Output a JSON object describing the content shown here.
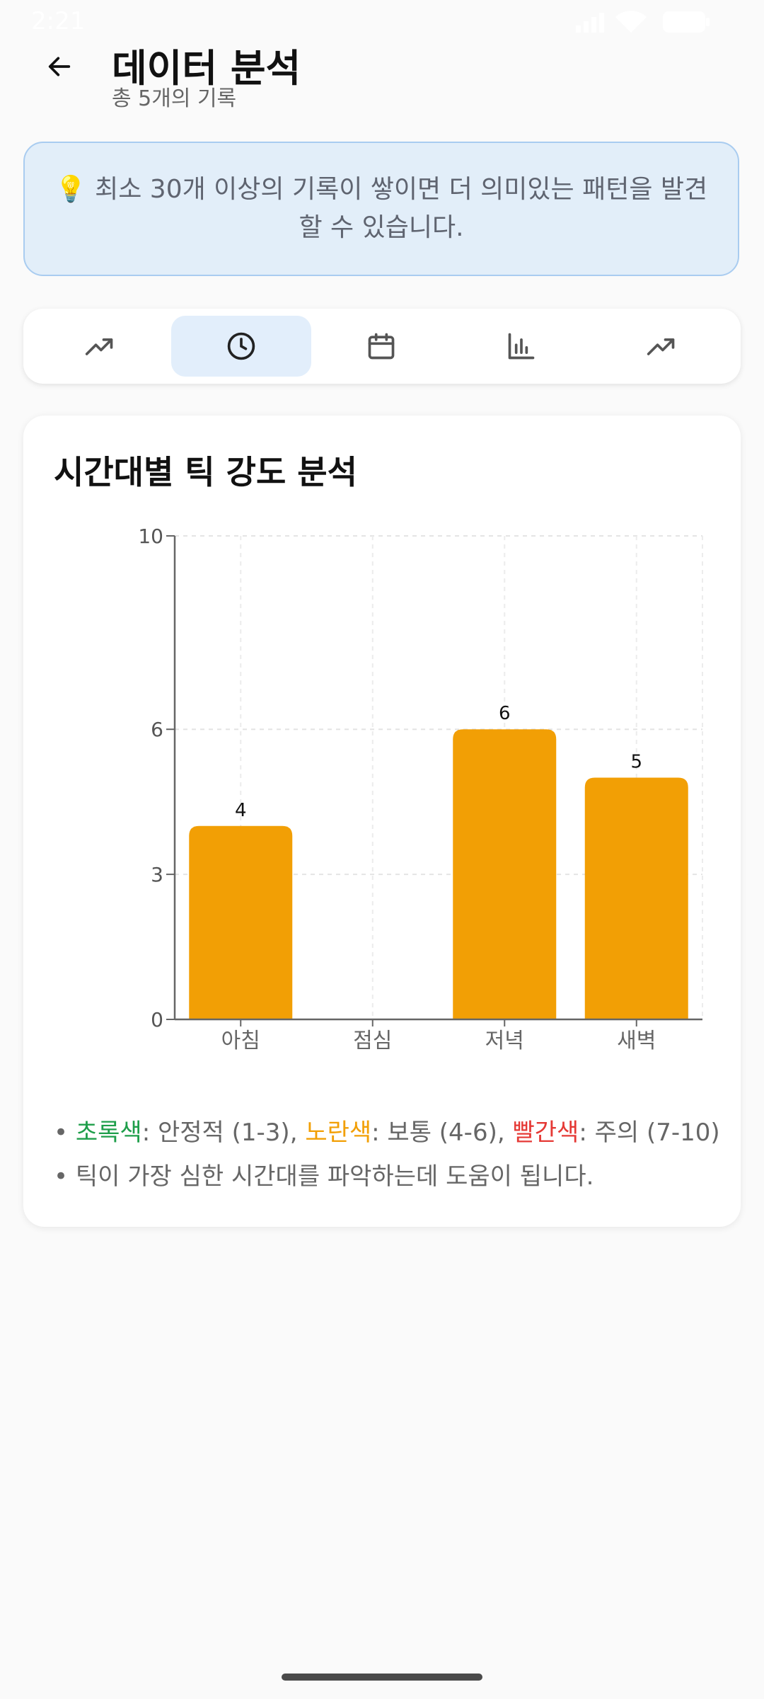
{
  "status_bar": {
    "time": "2:21"
  },
  "header": {
    "title": "데이터 분석",
    "subtitle": "총 5개의 기록"
  },
  "notice": {
    "text": "💡 최소 30개 이상의 기록이 쌓이면 더 의미있는 패턴을 발견할 수 있습니다."
  },
  "tabs": [
    {
      "icon": "trending-up-icon",
      "active": false
    },
    {
      "icon": "clock-icon",
      "active": true
    },
    {
      "icon": "calendar-icon",
      "active": false
    },
    {
      "icon": "bar-chart-icon",
      "active": false
    },
    {
      "icon": "trending-up-icon",
      "active": false
    }
  ],
  "chart_card": {
    "title": "시간대별 틱 강도 분석",
    "legend": {
      "bullet": "•",
      "green_label": "초록색",
      "green_desc": ": 안정적 (1-3), ",
      "yellow_label": "노란색",
      "yellow_desc": ": 보통 (4-6), ",
      "red_label": "빨간색",
      "red_desc": ": 주의 (7-10)",
      "note": "틱이 가장 심한 시간대를 파악하는데 도움이 됩니다."
    }
  },
  "chart_data": {
    "type": "bar",
    "categories": [
      "아침",
      "점심",
      "저녁",
      "새벽"
    ],
    "values": [
      4,
      null,
      6,
      5
    ],
    "yticks": [
      0,
      3,
      6,
      10
    ],
    "ylim": [
      0,
      10
    ],
    "grid": true,
    "bar_color": "#f29f05"
  },
  "colors": {
    "accent_tab_bg": "#e2eefb",
    "notice_bg": "#e2eef9",
    "notice_border": "#a9ccf0",
    "green": "#1e9e4a",
    "yellow": "#f29f05",
    "red": "#e53935"
  }
}
